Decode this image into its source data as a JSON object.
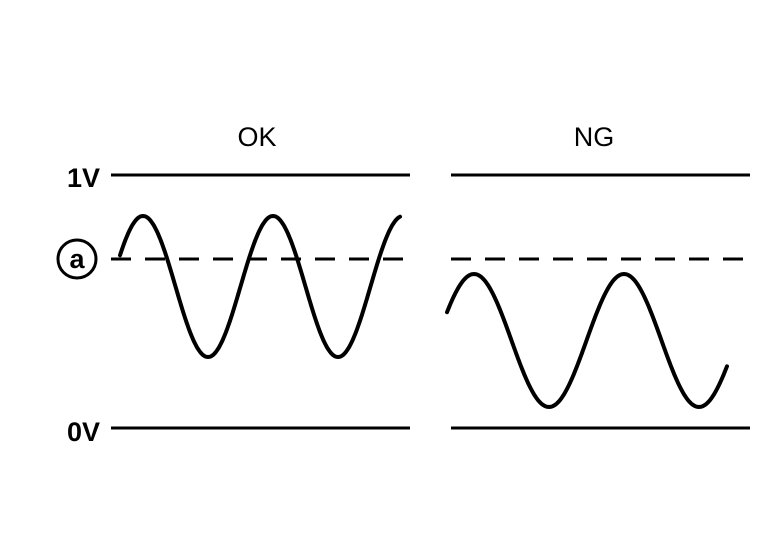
{
  "diagram": {
    "panels": [
      {
        "title": "OK"
      },
      {
        "title": "NG"
      }
    ],
    "levels": {
      "top": "1V",
      "bottom": "0V",
      "threshold_marker": "a"
    },
    "colors": {
      "stroke": "#000000",
      "background": "#ffffff"
    }
  }
}
